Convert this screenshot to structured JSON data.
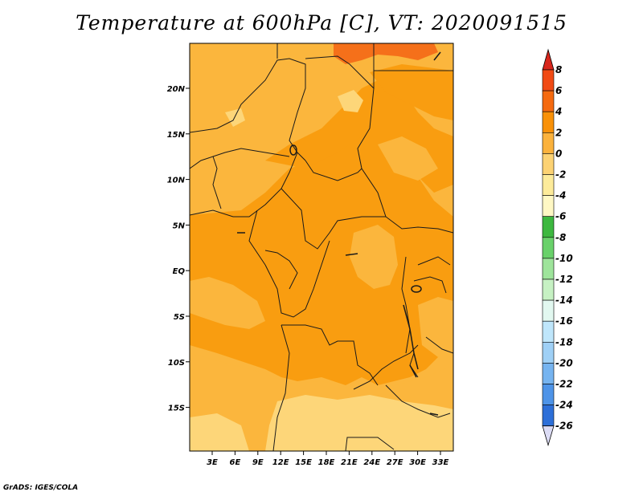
{
  "title": "Temperature at 600hPa [C], VT: 2020091515",
  "credit": "GrADS: IGES/COLA",
  "lon_labels": [
    "3E",
    "6E",
    "9E",
    "12E",
    "15E",
    "18E",
    "21E",
    "24E",
    "27E",
    "30E",
    "33E"
  ],
  "lat_labels": [
    "20N",
    "15N",
    "10N",
    "5N",
    "EQ",
    "5S",
    "10S",
    "15S"
  ],
  "colorbar": {
    "labels": [
      "8",
      "6",
      "4",
      "2",
      "0",
      "-2",
      "-4",
      "-6",
      "-8",
      "-10",
      "-12",
      "-14",
      "-16",
      "-18",
      "-20",
      "-22",
      "-24",
      "-26"
    ],
    "colors": {
      "top_arrow": "#d8261c",
      "bins": [
        "#f14a14",
        "#f56a10",
        "#f99108",
        "#fbb23c",
        "#fcd273",
        "#fdeb9a",
        "#fff8c4",
        "#3db83f",
        "#69d16a",
        "#9ee49b",
        "#c6f1c3",
        "#e2f8f0",
        "#bfe6fb",
        "#9fd0f6",
        "#76b4f0",
        "#4e94e8",
        "#2d6fd8",
        "#1a4db4",
        "#0f2f88",
        "#091a5c"
      ],
      "bottom_arrow": "#dcdcf5"
    }
  },
  "map_colors": {
    "warm_2_4": "#f99d10",
    "mild_0_2": "#fbb63d",
    "cool_neg2_0": "#fdd679",
    "hot_4_6": "#f5701a",
    "border": "#1a1a1a"
  }
}
